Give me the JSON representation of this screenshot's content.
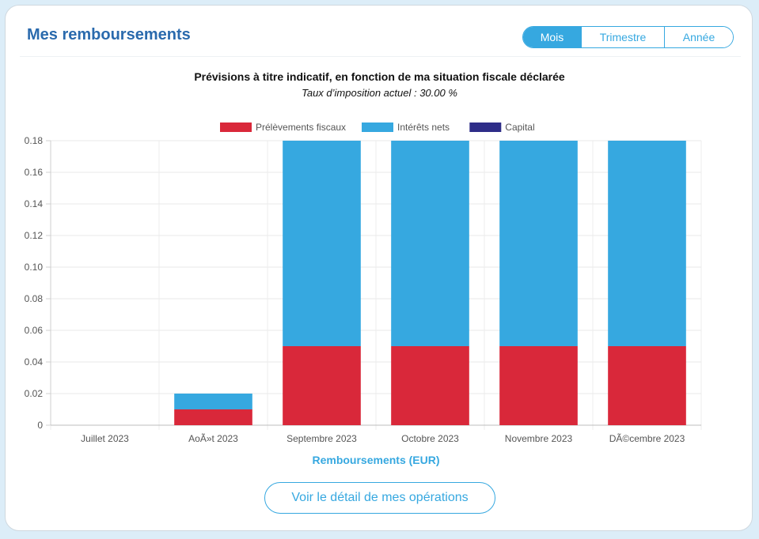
{
  "header": {
    "title": "Mes remboursements"
  },
  "tabs": [
    {
      "label": "Mois",
      "active": true
    },
    {
      "label": "Trimestre",
      "active": false
    },
    {
      "label": "Année",
      "active": false
    }
  ],
  "info": {
    "line1": "Prévisions à titre indicatif, en fonction de ma situation fiscale déclarée",
    "line2": "Taux d’imposition actuel : 30.00 %"
  },
  "chart_data": {
    "type": "bar",
    "stacked": true,
    "categories": [
      "Juillet 2023",
      "AoÃ»t 2023",
      "Septembre 2023",
      "Octobre 2023",
      "Novembre 2023",
      "DÃ©cembre 2023"
    ],
    "series": [
      {
        "name": "Prélèvements fiscaux",
        "color": "#d9283a",
        "values": [
          0,
          0.01,
          0.05,
          0.05,
          0.05,
          0.05
        ]
      },
      {
        "name": "Intérêts nets",
        "color": "#36a8e0",
        "values": [
          0,
          0.01,
          0.13,
          0.13,
          0.13,
          0.13
        ]
      },
      {
        "name": "Capital",
        "color": "#2e2d88",
        "values": [
          0,
          0,
          0,
          0,
          0,
          0
        ]
      }
    ],
    "ylim": [
      0,
      0.18
    ],
    "yticks": [
      "0",
      "0.02",
      "0.04",
      "0.06",
      "0.08",
      "0.10",
      "0.12",
      "0.14",
      "0.16",
      "0.18"
    ],
    "xlabel": "Remboursements (EUR)",
    "grid": true,
    "legend": "top-center"
  },
  "footer": {
    "detail_button": "Voir le détail de mes opérations"
  }
}
